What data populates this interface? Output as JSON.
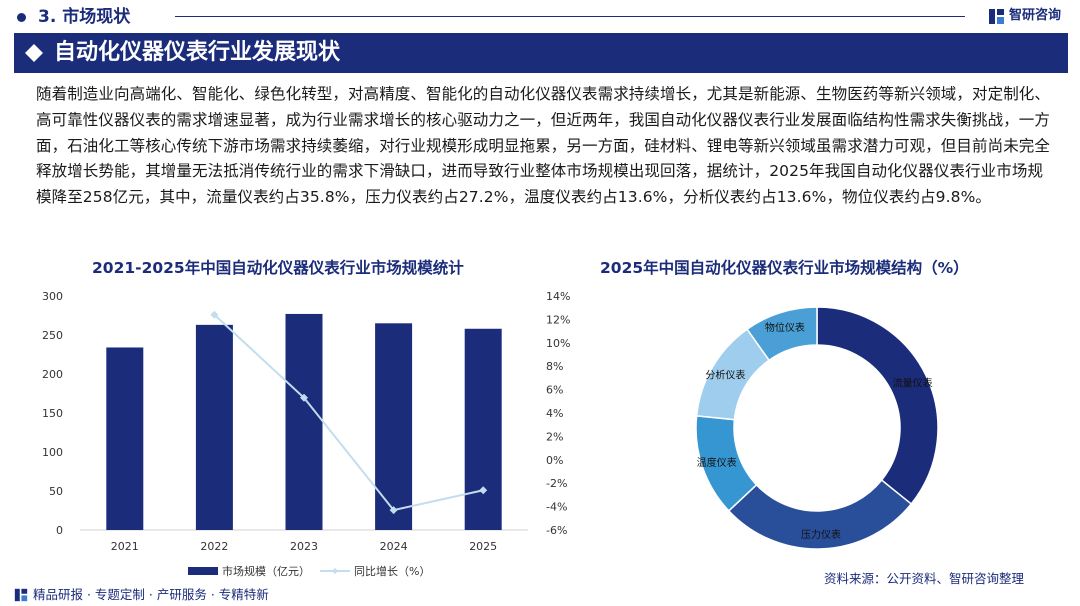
{
  "header": {
    "section_title": "3. 市场现状",
    "brand_name": "智研咨询"
  },
  "banner": {
    "title": "自动化仪器仪表行业发展现状"
  },
  "paragraph": "随着制造业向高端化、智能化、绿色化转型，对高精度、智能化的自动化仪器仪表需求持续增长，尤其是新能源、生物医药等新兴领域，对定制化、高可靠性仪器仪表的需求增速显著，成为行业需求增长的核心驱动力之一，但近两年，我国自动化仪器仪表行业发展面临结构性需求失衡挑战，一方面，石油化工等核心传统下游市场需求持续萎缩，对行业规模形成明显拖累，另一方面，硅材料、锂电等新兴领域虽需求潜力可观，但目前尚未完全释放增长势能，其增量无法抵消传统行业的需求下滑缺口，进而导致行业整体市场规模出现回落，据统计，2025年我国自动化仪器仪表行业市场规模降至258亿元，其中，流量仪表约占35.8%，压力仪表约占27.2%，温度仪表约占13.6%，分析仪表约占13.6%，物位仪表约占9.8%。",
  "colors": {
    "navy": "#1b2c7a",
    "line": "#c3dcee"
  },
  "chart_data": [
    {
      "type": "bar",
      "title": "2021-2025年中国自动化仪器仪表行业市场规模统计",
      "categories": [
        "2021",
        "2022",
        "2023",
        "2024",
        "2025"
      ],
      "series": [
        {
          "name": "市场规模（亿元）",
          "type": "bar",
          "axis": "left",
          "values": [
            234,
            263,
            277,
            265,
            258
          ],
          "color": "#1b2c7a"
        },
        {
          "name": "同比增长（%）",
          "type": "line",
          "axis": "right",
          "values": [
            null,
            12.4,
            5.3,
            -4.3,
            -2.6
          ],
          "color": "#c3dcee"
        }
      ],
      "yticks": [
        "0",
        "50",
        "100",
        "150",
        "200",
        "250",
        "300"
      ],
      "ylim": [
        0,
        300
      ],
      "y2ticks": [
        "-6%",
        "-4%",
        "-2%",
        "0%",
        "2%",
        "4%",
        "6%",
        "8%",
        "10%",
        "12%",
        "14%"
      ],
      "y2lim": [
        -6,
        14
      ],
      "legend_position": "bottom"
    },
    {
      "type": "pie",
      "style": "donut",
      "title": "2025年中国自动化仪器仪表行业市场规模结构（%）",
      "labels": [
        "流量仪表",
        "压力仪表",
        "温度仪表",
        "分析仪表",
        "物位仪表"
      ],
      "values": [
        35.8,
        27.2,
        13.6,
        13.6,
        9.8
      ],
      "colors": [
        "#1b2c7a",
        "#2a4f9a",
        "#3596d2",
        "#9fcdee",
        "#4aa0d6"
      ]
    }
  ],
  "source": "资料来源：公开资料、智研咨询整理",
  "footer": {
    "text": "精品研报 · 专题定制 · 产研服务 · 专精特新"
  }
}
